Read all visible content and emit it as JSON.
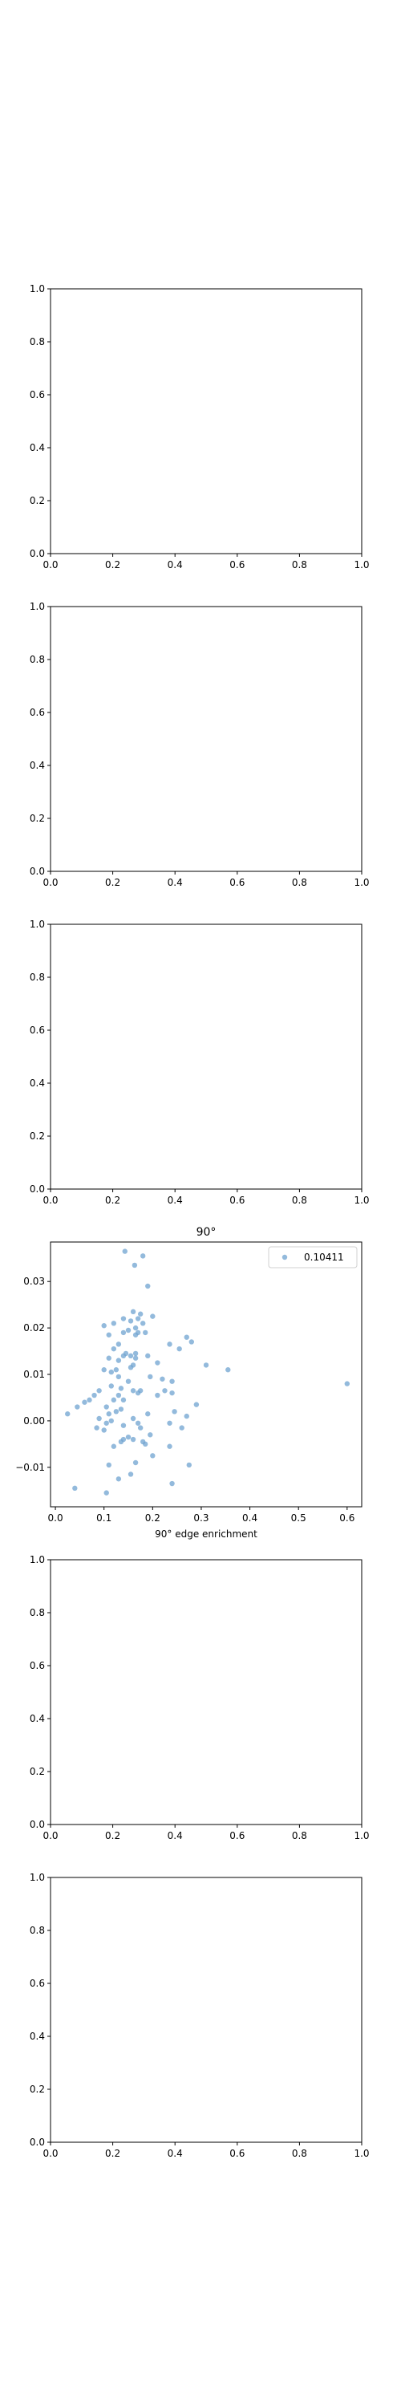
{
  "chart_data": [
    {
      "type": "empty",
      "xlim": [
        0,
        1
      ],
      "ylim": [
        0,
        1
      ],
      "xticks": [
        "0.0",
        "0.2",
        "0.4",
        "0.6",
        "0.8",
        "1.0"
      ],
      "yticks": [
        "0.0",
        "0.2",
        "0.4",
        "0.6",
        "0.8",
        "1.0"
      ]
    },
    {
      "type": "empty",
      "xlim": [
        0,
        1
      ],
      "ylim": [
        0,
        1
      ],
      "xticks": [
        "0.0",
        "0.2",
        "0.4",
        "0.6",
        "0.8",
        "1.0"
      ],
      "yticks": [
        "0.0",
        "0.2",
        "0.4",
        "0.6",
        "0.8",
        "1.0"
      ]
    },
    {
      "type": "empty",
      "xlim": [
        0,
        1
      ],
      "ylim": [
        0,
        1
      ],
      "xticks": [
        "0.0",
        "0.2",
        "0.4",
        "0.6",
        "0.8",
        "1.0"
      ],
      "yticks": [
        "0.0",
        "0.2",
        "0.4",
        "0.6",
        "0.8",
        "1.0"
      ]
    },
    {
      "type": "scatter",
      "title": "90°",
      "xlabel": "90° edge enrichment",
      "ylabel": "",
      "xlim": [
        -0.01,
        0.63
      ],
      "ylim": [
        -0.0185,
        0.0385
      ],
      "xticks": [
        "0.0",
        "0.1",
        "0.2",
        "0.3",
        "0.4",
        "0.5",
        "0.6"
      ],
      "xtick_values": [
        0.0,
        0.1,
        0.2,
        0.3,
        0.4,
        0.5,
        0.6
      ],
      "yticks": [
        "−0.01",
        "0.00",
        "0.01",
        "0.02",
        "0.03"
      ],
      "ytick_values": [
        -0.01,
        0.0,
        0.01,
        0.02,
        0.03
      ],
      "legend": {
        "placement": "top-right",
        "entries": [
          "0.10411"
        ]
      },
      "point_color": "#6fa3d0",
      "x": [
        0.143,
        0.18,
        0.163,
        0.19,
        0.16,
        0.175,
        0.14,
        0.17,
        0.155,
        0.18,
        0.165,
        0.2,
        0.15,
        0.17,
        0.185,
        0.14,
        0.12,
        0.1,
        0.11,
        0.165,
        0.13,
        0.27,
        0.28,
        0.255,
        0.12,
        0.145,
        0.165,
        0.155,
        0.14,
        0.19,
        0.165,
        0.11,
        0.13,
        0.21,
        0.31,
        0.355,
        0.235,
        0.16,
        0.155,
        0.125,
        0.1,
        0.115,
        0.195,
        0.22,
        0.24,
        0.13,
        0.15,
        0.08,
        0.07,
        0.09,
        0.115,
        0.135,
        0.16,
        0.175,
        0.225,
        0.13,
        0.06,
        0.045,
        0.025,
        0.12,
        0.14,
        0.17,
        0.21,
        0.24,
        0.29,
        0.6,
        0.105,
        0.11,
        0.125,
        0.135,
        0.115,
        0.09,
        0.16,
        0.19,
        0.245,
        0.27,
        0.105,
        0.1,
        0.085,
        0.14,
        0.17,
        0.175,
        0.195,
        0.235,
        0.26,
        0.18,
        0.16,
        0.15,
        0.14,
        0.12,
        0.185,
        0.235,
        0.275,
        0.2,
        0.165,
        0.155,
        0.13,
        0.11,
        0.04,
        0.24,
        0.105,
        0.135
      ],
      "y": [
        0.0365,
        0.0355,
        0.0335,
        0.029,
        0.0235,
        0.023,
        0.022,
        0.022,
        0.0215,
        0.021,
        0.02,
        0.0225,
        0.0195,
        0.019,
        0.019,
        0.019,
        0.021,
        0.0205,
        0.0185,
        0.0185,
        0.0165,
        0.018,
        0.017,
        0.0155,
        0.0155,
        0.0145,
        0.0145,
        0.014,
        0.014,
        0.014,
        0.0135,
        0.0135,
        0.013,
        0.0125,
        0.012,
        0.011,
        0.0165,
        0.012,
        0.0115,
        0.011,
        0.011,
        0.0105,
        0.0095,
        0.009,
        0.0085,
        0.0095,
        0.0085,
        0.0055,
        0.0045,
        0.0065,
        0.0075,
        0.007,
        0.0065,
        0.0065,
        0.0065,
        0.0055,
        0.004,
        0.003,
        0.0015,
        0.0045,
        0.0045,
        0.006,
        0.0055,
        0.006,
        0.0035,
        0.008,
        0.003,
        0.0015,
        0.002,
        0.0025,
        0.0,
        0.0005,
        0.0005,
        0.0015,
        0.002,
        0.001,
        -0.0005,
        -0.002,
        -0.0015,
        -0.001,
        -0.0005,
        -0.0015,
        -0.003,
        -0.0005,
        -0.0015,
        -0.0045,
        -0.004,
        -0.0035,
        -0.004,
        -0.0055,
        -0.005,
        -0.0055,
        -0.0095,
        -0.0075,
        -0.009,
        -0.0115,
        -0.0125,
        -0.0095,
        -0.0145,
        -0.0135,
        -0.0155,
        -0.0045
      ]
    },
    {
      "type": "empty",
      "xlim": [
        0,
        1
      ],
      "ylim": [
        0,
        1
      ],
      "xticks": [
        "0.0",
        "0.2",
        "0.4",
        "0.6",
        "0.8",
        "1.0"
      ],
      "yticks": [
        "0.0",
        "0.2",
        "0.4",
        "0.6",
        "0.8",
        "1.0"
      ]
    },
    {
      "type": "empty",
      "xlim": [
        0,
        1
      ],
      "ylim": [
        0,
        1
      ],
      "xticks": [
        "0.0",
        "0.2",
        "0.4",
        "0.6",
        "0.8",
        "1.0"
      ],
      "yticks": [
        "0.0",
        "0.2",
        "0.4",
        "0.6",
        "0.8",
        "1.0"
      ]
    }
  ]
}
